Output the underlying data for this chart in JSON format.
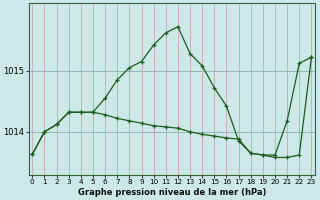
{
  "xlabel": "Graphe pression niveau de la mer (hPa)",
  "background_color": "#cce8e8",
  "plot_bg_color": "#cce8e8",
  "grid_color_v": "#b0c8c8",
  "grid_color_h": "#aaaaaa",
  "line_color": "#1a5e1a",
  "line1_x": [
    0,
    1,
    2,
    3,
    4,
    5,
    6,
    7,
    8,
    9,
    10,
    11,
    12,
    13,
    14,
    15,
    16,
    17,
    18,
    19,
    20,
    21,
    22,
    23
  ],
  "line1_y": [
    1013.63,
    1014.0,
    1014.12,
    1014.32,
    1014.32,
    1014.32,
    1014.55,
    1014.85,
    1015.05,
    1015.15,
    1015.42,
    1015.62,
    1015.72,
    1015.28,
    1015.08,
    1014.72,
    1014.42,
    1013.85,
    1013.65,
    1013.62,
    1013.62,
    1014.18,
    1015.12,
    1015.22
  ],
  "line2_x": [
    0,
    1,
    2,
    3,
    4,
    5,
    6,
    7,
    8,
    9,
    10,
    11,
    12,
    13,
    14,
    15,
    16,
    17,
    18,
    19,
    20,
    21,
    22,
    23
  ],
  "line2_y": [
    1013.63,
    1014.0,
    1014.12,
    1014.32,
    1014.32,
    1014.32,
    1014.28,
    1014.22,
    1014.18,
    1014.14,
    1014.1,
    1014.08,
    1014.06,
    1014.0,
    1013.96,
    1013.93,
    1013.9,
    1013.88,
    1013.65,
    1013.62,
    1013.58,
    1013.58,
    1013.62,
    1015.22
  ],
  "yticks": [
    1014,
    1015
  ],
  "ylim": [
    1013.3,
    1016.1
  ],
  "xlim": [
    -0.3,
    23.3
  ],
  "xticks": [
    0,
    1,
    2,
    3,
    4,
    5,
    6,
    7,
    8,
    9,
    10,
    11,
    12,
    13,
    14,
    15,
    16,
    17,
    18,
    19,
    20,
    21,
    22,
    23
  ],
  "xlabel_fontsize": 6.0,
  "ytick_fontsize": 6.0,
  "xtick_fontsize": 5.2
}
